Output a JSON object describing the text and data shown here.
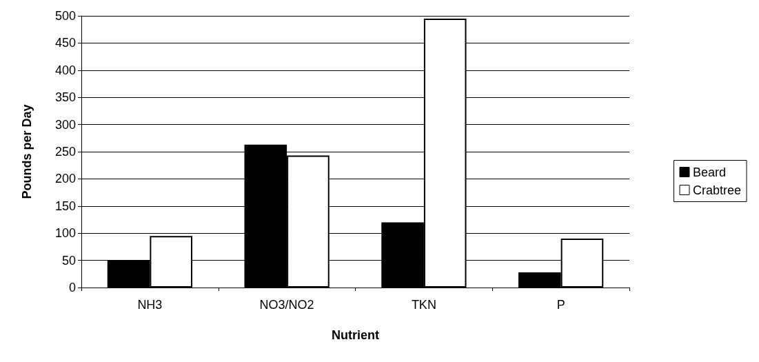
{
  "chart_data": {
    "type": "bar",
    "xlabel": "Nutrient",
    "ylabel": "Pounds per Day",
    "categories": [
      "NH3",
      "NO3/NO2",
      "TKN",
      "P"
    ],
    "series": [
      {
        "name": "Beard",
        "color": "#000000",
        "values": [
          50,
          263,
          120,
          28
        ]
      },
      {
        "name": "Crabtree",
        "color": "#ffffff",
        "values": [
          95,
          243,
          495,
          90
        ]
      }
    ],
    "ylim": [
      0,
      500
    ],
    "yticks": [
      0,
      50,
      100,
      150,
      200,
      250,
      300,
      350,
      400,
      450,
      500
    ],
    "grid": "y",
    "legend": "right"
  }
}
